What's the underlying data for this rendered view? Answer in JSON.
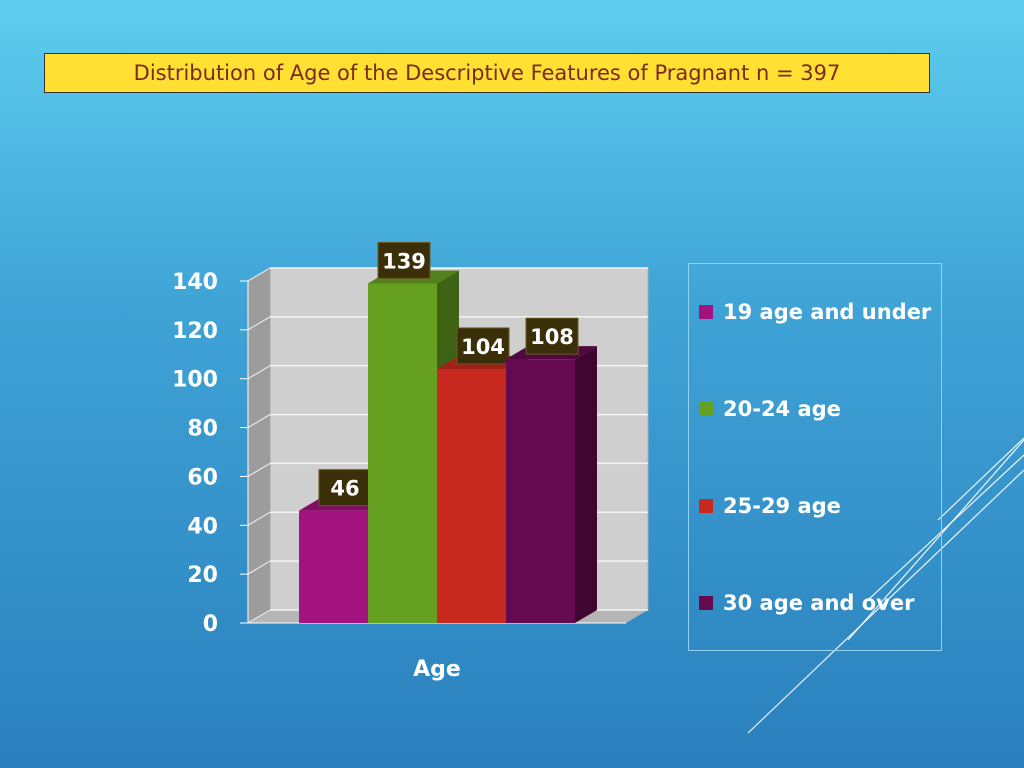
{
  "title": "Distribution of Age of the Descriptive Features of Pragnant n = 397",
  "chart_data": {
    "type": "bar",
    "categories": [
      "Age"
    ],
    "series": [
      {
        "name": "19 age and under",
        "values": [
          46
        ],
        "color": "#a3137f"
      },
      {
        "name": "20-24 age",
        "values": [
          139
        ],
        "color": "#66a021"
      },
      {
        "name": "25-29 age",
        "values": [
          104
        ],
        "color": "#c8291f"
      },
      {
        "name": "30 age and over",
        "values": [
          108
        ],
        "color": "#650950"
      }
    ],
    "xlabel": "Age",
    "ylabel": "",
    "ylim": [
      0,
      140
    ],
    "yticks": [
      "0",
      "20",
      "40",
      "60",
      "80",
      "100",
      "120",
      "140"
    ],
    "grid": true,
    "legend": "right"
  }
}
